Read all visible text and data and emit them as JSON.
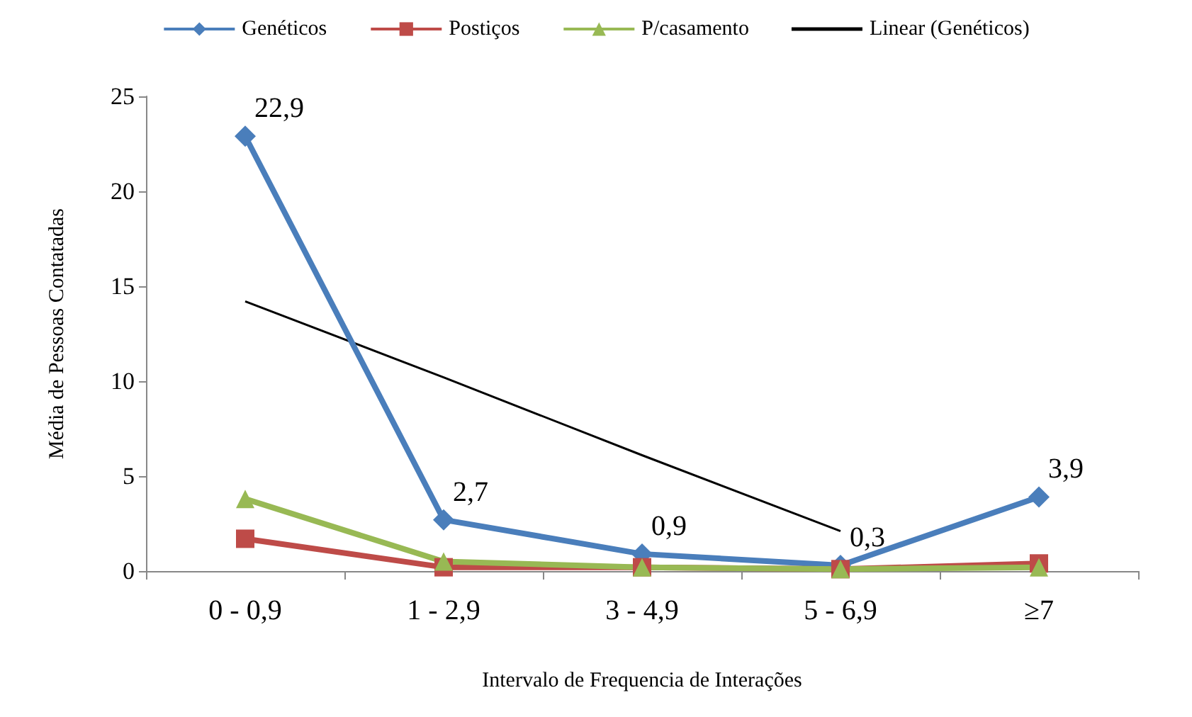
{
  "chart_data": {
    "type": "line",
    "xlabel": "Intervalo de Frequencia de Interações",
    "ylabel": "Média de Pessoas Contatadas",
    "categories": [
      "0 - 0,9",
      "1 - 2,9",
      "3 - 4,9",
      "5 - 6,9",
      "≥7"
    ],
    "series": [
      {
        "name": "Genéticos",
        "color": "#4a7ebb",
        "marker": "diamond",
        "values": [
          22.9,
          2.7,
          0.9,
          0.3,
          3.9
        ],
        "value_labels": [
          "22,9",
          "2,7",
          "0,9",
          "0,3",
          "3,9"
        ]
      },
      {
        "name": "Postiços",
        "color": "#be4b48",
        "marker": "square",
        "values": [
          1.7,
          0.2,
          0.2,
          0.1,
          0.4
        ]
      },
      {
        "name": "P/casamento",
        "color": "#98b954",
        "marker": "triangle",
        "values": [
          3.8,
          0.5,
          0.2,
          0.1,
          0.2
        ]
      },
      {
        "name": "Linear (Genéticos)",
        "color": "#000000",
        "marker": "none",
        "x": [
          "0 - 0,9",
          "1 - 2,9",
          "3 - 4,9",
          "5 - 6,9"
        ],
        "values": [
          14.2,
          10.2,
          6.1,
          2.1
        ]
      }
    ],
    "ylim": [
      0,
      25
    ],
    "yticks": [
      0,
      5,
      10,
      15,
      20,
      25
    ],
    "grid": false,
    "legend": "top"
  }
}
